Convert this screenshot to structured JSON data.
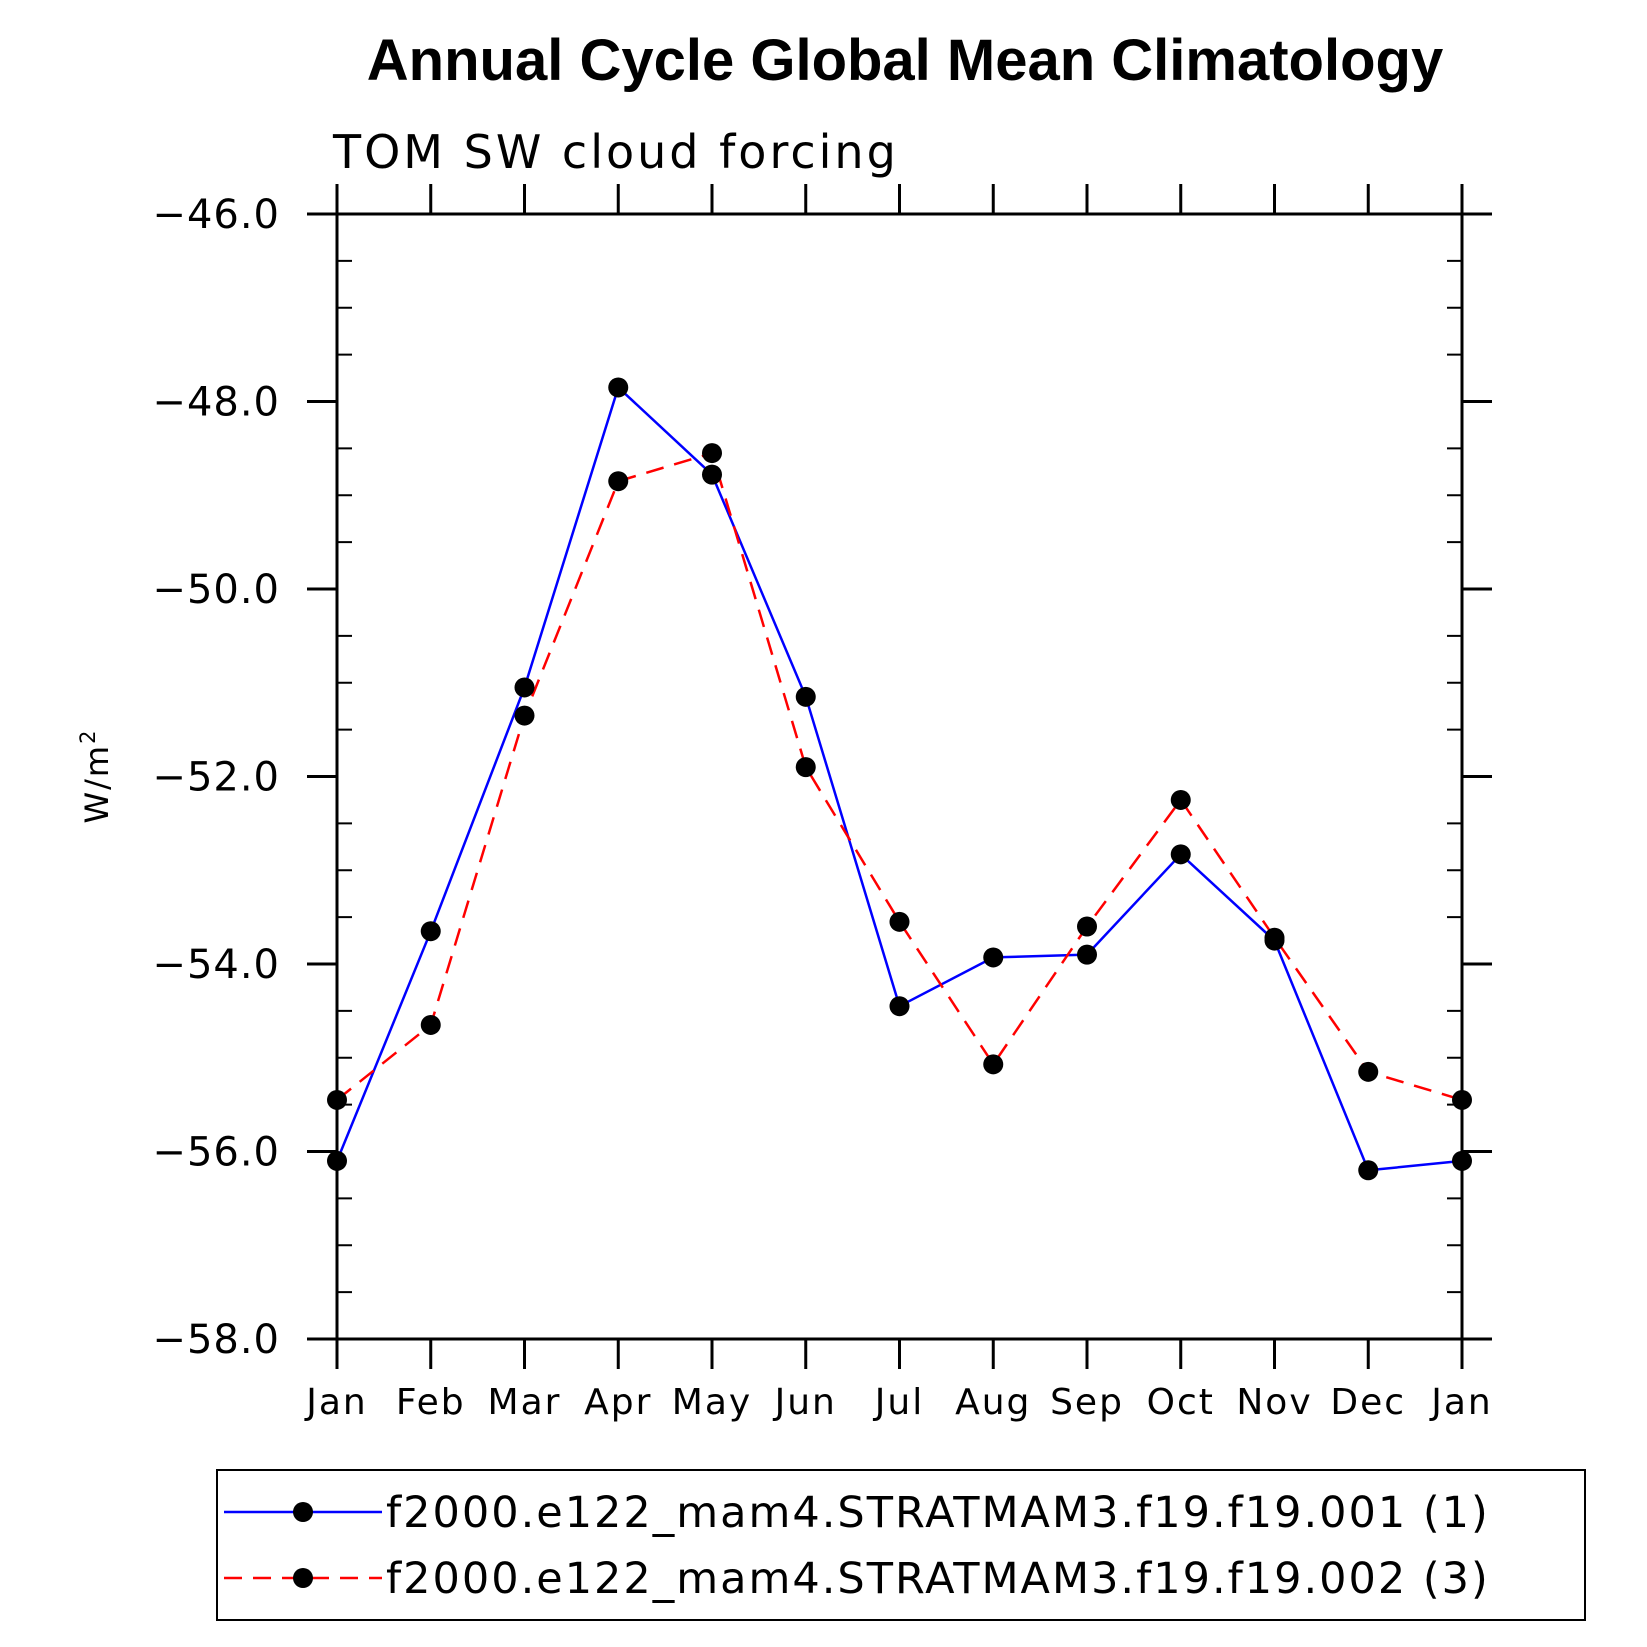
{
  "colors": {
    "series1": "#0000ff",
    "series2": "#ff0000",
    "axis": "#000000",
    "marker": "#000000"
  },
  "chart_data": {
    "type": "line",
    "title": "Annual Cycle Global Mean Climatology",
    "subtitle": "TOM SW cloud forcing",
    "ylabel": "W/m",
    "ylabel_superscript": "2",
    "xlabel": "",
    "categories": [
      "Jan",
      "Feb",
      "Mar",
      "Apr",
      "May",
      "Jun",
      "Jul",
      "Aug",
      "Sep",
      "Oct",
      "Nov",
      "Dec",
      "Jan"
    ],
    "ylim": [
      -58.0,
      -46.0
    ],
    "y_major_ticks": [
      -58.0,
      -56.0,
      -54.0,
      -52.0,
      -50.0,
      -48.0,
      -46.0
    ],
    "y_tick_labels": [
      "−58.0",
      "−56.0",
      "−54.0",
      "−52.0",
      "−50.0",
      "−48.0",
      "−46.0"
    ],
    "y_minor_step": 0.5,
    "grid": false,
    "legend_position": "bottom",
    "series": [
      {
        "name": "f2000.e122_mam4.STRATMAM3.f19.f19.001 (1)",
        "style": "solid",
        "color": "#0000ff",
        "marker": "filled-circle",
        "values": [
          -56.1,
          -53.65,
          -51.05,
          -47.85,
          -48.78,
          -51.15,
          -54.45,
          -53.93,
          -53.9,
          -52.83,
          -53.75,
          -56.2,
          -56.1
        ]
      },
      {
        "name": "f2000.e122_mam4.STRATMAM3.f19.f19.002 (3)",
        "style": "dashed",
        "color": "#ff0000",
        "marker": "filled-circle",
        "values": [
          -55.45,
          -54.65,
          -51.35,
          -48.85,
          -48.55,
          -51.9,
          -53.55,
          -55.07,
          -53.6,
          -52.25,
          -53.72,
          -55.15,
          -55.45
        ]
      }
    ]
  }
}
